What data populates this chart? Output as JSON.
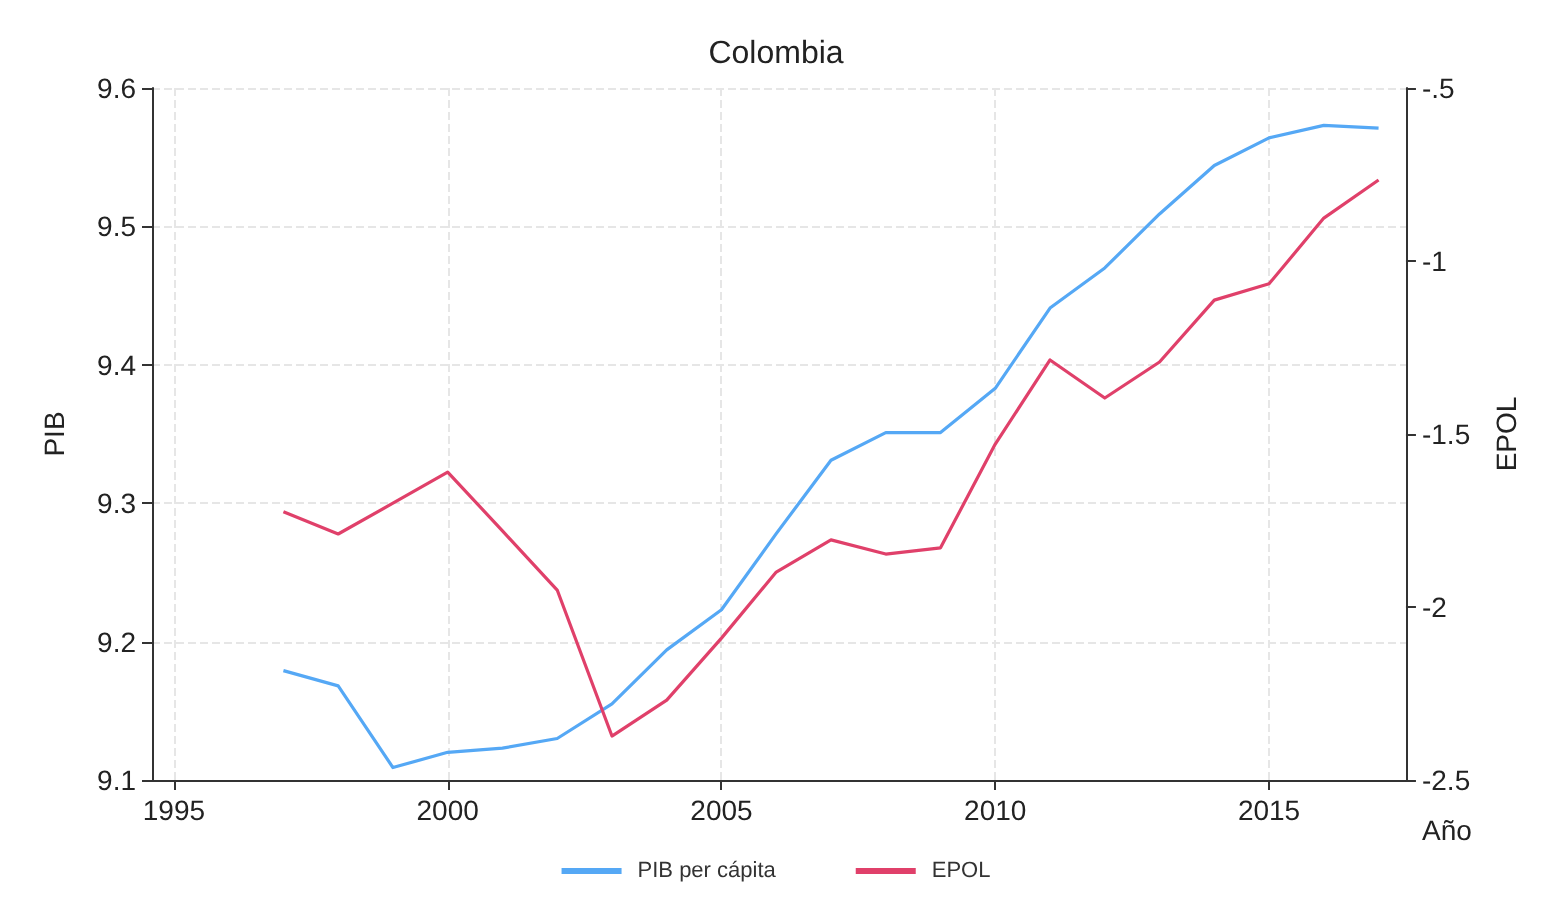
{
  "chart_data": {
    "type": "line",
    "title": "Colombia",
    "xlabel": "Año",
    "ylabel": "PIB",
    "y2label": "EPOL",
    "x": [
      1997,
      1998,
      1999,
      2000,
      2001,
      2002,
      2003,
      2004,
      2005,
      2006,
      2007,
      2008,
      2009,
      2010,
      2011,
      2012,
      2013,
      2014,
      2015,
      2016,
      2017
    ],
    "series": [
      {
        "name": "PIB per cápita",
        "color": "#55a8f5",
        "values": [
          9.179,
          9.168,
          9.109,
          9.12,
          9.123,
          9.13,
          9.155,
          9.194,
          9.223,
          9.278,
          9.331,
          9.351,
          9.351,
          9.383,
          9.441,
          9.47,
          9.509,
          9.544,
          9.564,
          9.573,
          9.571
        ]
      },
      {
        "name": "EPOL",
        "color": "#e0406a",
        "axis": "y2",
        "values": [
          -1.725,
          -1.789,
          -1.7,
          -1.61,
          -1.78,
          -1.951,
          -2.373,
          -2.269,
          -2.09,
          -1.899,
          -1.806,
          -1.847,
          -1.829,
          -1.529,
          -1.286,
          -1.396,
          -1.292,
          -1.113,
          -1.066,
          -0.876,
          -0.766
        ]
      }
    ],
    "xlim": [
      1994.6,
      2017.5
    ],
    "xticks": [
      1995,
      2000,
      2005,
      2010,
      2015
    ],
    "ylim": [
      9.1,
      9.6
    ],
    "yticks": [
      9.1,
      9.2,
      9.3,
      9.4,
      9.5,
      9.6
    ],
    "y2lim": [
      -2.5,
      -0.5
    ],
    "y2ticks": [
      {
        "value": -2.5,
        "label": "-2.5"
      },
      {
        "value": -2,
        "label": "-2"
      },
      {
        "value": -1.5,
        "label": "-1.5"
      },
      {
        "value": -1,
        "label": "-1"
      },
      {
        "value": -0.5,
        "label": "-.5"
      }
    ],
    "grid": true,
    "legend": "bottom",
    "marker": "none",
    "line_style": "solid"
  }
}
